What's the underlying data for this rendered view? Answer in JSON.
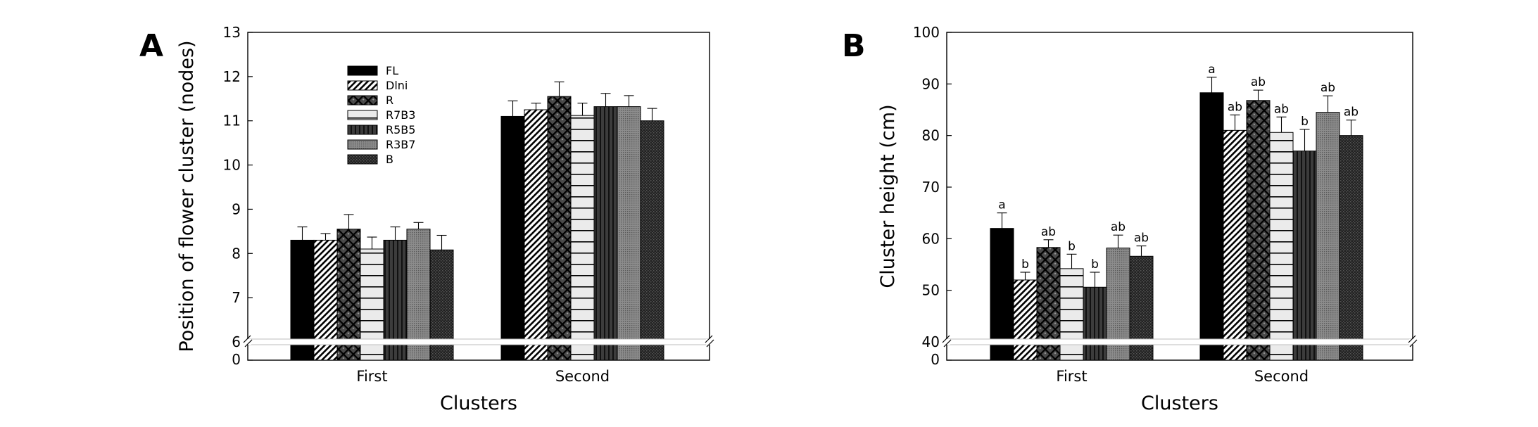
{
  "chart_data": [
    {
      "panel": "A",
      "type": "bar",
      "ylabel": "Position of flower cluster (nodes)",
      "xlabel": "Clusters",
      "categories": [
        "First",
        "Second"
      ],
      "ylim": [
        6,
        13
      ],
      "yticks": [
        "0",
        "6",
        "7",
        "8",
        "9",
        "10",
        "11",
        "12",
        "13"
      ],
      "axis_break": true,
      "legend_position": "top-left",
      "series": [
        {
          "name": "FL",
          "pattern": "solid",
          "values": [
            8.3,
            11.1
          ],
          "errors": [
            0.3,
            0.35
          ]
        },
        {
          "name": "Dlni",
          "pattern": "diagonal",
          "values": [
            8.3,
            11.25
          ],
          "errors": [
            0.15,
            0.15
          ]
        },
        {
          "name": "R",
          "pattern": "crosshatch",
          "values": [
            8.55,
            11.55
          ],
          "errors": [
            0.33,
            0.33
          ]
        },
        {
          "name": "R7B3",
          "pattern": "horizontal",
          "values": [
            8.1,
            11.12
          ],
          "errors": [
            0.27,
            0.28
          ]
        },
        {
          "name": "R5B5",
          "pattern": "vertical",
          "values": [
            8.3,
            11.32
          ],
          "errors": [
            0.3,
            0.3
          ]
        },
        {
          "name": "R3B7",
          "pattern": "dotted",
          "values": [
            8.55,
            11.32
          ],
          "errors": [
            0.15,
            0.25
          ]
        },
        {
          "name": "B",
          "pattern": "dense",
          "values": [
            8.08,
            11.0
          ],
          "errors": [
            0.33,
            0.28
          ]
        }
      ]
    },
    {
      "panel": "B",
      "type": "bar",
      "ylabel": "Cluster height (cm)",
      "xlabel": "Clusters",
      "categories": [
        "First",
        "Second"
      ],
      "ylim": [
        40,
        100
      ],
      "yticks": [
        "0",
        "40",
        "50",
        "60",
        "70",
        "80",
        "90",
        "100"
      ],
      "axis_break": true,
      "series": [
        {
          "name": "FL",
          "pattern": "solid",
          "values": [
            62.0,
            88.3
          ],
          "errors": [
            3.0,
            3.0
          ],
          "labels": [
            "a",
            "a"
          ]
        },
        {
          "name": "Dlni",
          "pattern": "diagonal",
          "values": [
            52.0,
            81.0
          ],
          "errors": [
            1.5,
            3.0
          ],
          "labels": [
            "b",
            "ab"
          ]
        },
        {
          "name": "R",
          "pattern": "crosshatch",
          "values": [
            58.3,
            86.8
          ],
          "errors": [
            1.5,
            2.0
          ],
          "labels": [
            "ab",
            "ab"
          ]
        },
        {
          "name": "R7B3",
          "pattern": "horizontal",
          "values": [
            54.2,
            80.6
          ],
          "errors": [
            2.8,
            3.0
          ],
          "labels": [
            "b",
            "ab"
          ]
        },
        {
          "name": "R5B5",
          "pattern": "vertical",
          "values": [
            50.6,
            77.0
          ],
          "errors": [
            2.9,
            4.2
          ],
          "labels": [
            "b",
            "b"
          ]
        },
        {
          "name": "R3B7",
          "pattern": "dotted",
          "values": [
            58.2,
            84.5
          ],
          "errors": [
            2.5,
            3.2
          ],
          "labels": [
            "ab",
            "ab"
          ]
        },
        {
          "name": "B",
          "pattern": "dense",
          "values": [
            56.6,
            80.0
          ],
          "errors": [
            2.0,
            3.0
          ],
          "labels": [
            "ab",
            "ab"
          ]
        }
      ]
    }
  ]
}
